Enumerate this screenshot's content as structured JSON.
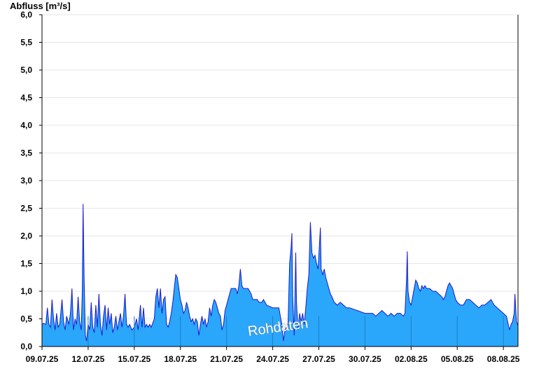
{
  "chart_data": {
    "type": "area",
    "ylabel": "Abfluss [m³/s]",
    "ylim": [
      0,
      6.0
    ],
    "y_ticks": [
      "0,0",
      "0,5",
      "1,0",
      "1,5",
      "2,0",
      "2,5",
      "3,0",
      "3,5",
      "4,0",
      "4,5",
      "5,0",
      "5,5",
      "6,0"
    ],
    "x_ticks": [
      "09.07.25",
      "12.07.25",
      "15.07.25",
      "18.07.25",
      "21.07.25",
      "24.07.25",
      "27.07.25",
      "30.07.25",
      "02.08.25",
      "05.08.25",
      "08.08.25"
    ],
    "x_range_days": [
      0,
      30.95
    ],
    "watermark": "Rohdaten",
    "grid": true,
    "colors": {
      "fill": "#2aa6fa",
      "line": "#1a1acc",
      "grid": "#e6e6e6",
      "axis": "#000000"
    },
    "series": [
      {
        "points": [
          [
            0,
            0.4
          ],
          [
            0.1,
            0.42
          ],
          [
            0.25,
            0.4
          ],
          [
            0.35,
            0.7
          ],
          [
            0.45,
            0.4
          ],
          [
            0.55,
            0.35
          ],
          [
            0.65,
            0.85
          ],
          [
            0.75,
            0.5
          ],
          [
            0.85,
            0.3
          ],
          [
            0.95,
            0.6
          ],
          [
            1.05,
            0.35
          ],
          [
            1.15,
            0.4
          ],
          [
            1.3,
            0.85
          ],
          [
            1.4,
            0.45
          ],
          [
            1.5,
            0.3
          ],
          [
            1.6,
            0.55
          ],
          [
            1.75,
            0.4
          ],
          [
            1.85,
            0.6
          ],
          [
            1.95,
            1.05
          ],
          [
            2.05,
            0.3
          ],
          [
            2.15,
            0.5
          ],
          [
            2.25,
            0.4
          ],
          [
            2.35,
            0.9
          ],
          [
            2.45,
            0.45
          ],
          [
            2.55,
            0.3
          ],
          [
            2.62,
            1.0
          ],
          [
            2.67,
            2.58
          ],
          [
            2.74,
            1.2
          ],
          [
            2.82,
            0.2
          ],
          [
            2.9,
            0.1
          ],
          [
            3.0,
            0.4
          ],
          [
            3.1,
            0.3
          ],
          [
            3.2,
            0.8
          ],
          [
            3.3,
            0.35
          ],
          [
            3.4,
            0.25
          ],
          [
            3.5,
            0.75
          ],
          [
            3.6,
            0.35
          ],
          [
            3.7,
            0.95
          ],
          [
            3.8,
            0.4
          ],
          [
            3.9,
            0.2
          ],
          [
            4.0,
            0.55
          ],
          [
            4.1,
            0.75
          ],
          [
            4.2,
            0.3
          ],
          [
            4.3,
            0.7
          ],
          [
            4.4,
            0.4
          ],
          [
            4.5,
            0.6
          ],
          [
            4.6,
            0.25
          ],
          [
            4.7,
            0.35
          ],
          [
            4.8,
            0.55
          ],
          [
            4.9,
            0.3
          ],
          [
            5.0,
            0.45
          ],
          [
            5.1,
            0.6
          ],
          [
            5.2,
            0.35
          ],
          [
            5.3,
            0.55
          ],
          [
            5.4,
            0.95
          ],
          [
            5.5,
            0.4
          ],
          [
            5.6,
            0.35
          ],
          [
            5.7,
            0.4
          ],
          [
            5.85,
            0.3
          ],
          [
            6.0,
            0.35
          ],
          [
            6.15,
            0.5
          ],
          [
            6.25,
            0.3
          ],
          [
            6.4,
            0.75
          ],
          [
            6.5,
            0.35
          ],
          [
            6.6,
            0.7
          ],
          [
            6.7,
            0.35
          ],
          [
            6.8,
            0.4
          ],
          [
            6.9,
            0.35
          ],
          [
            7.0,
            0.4
          ],
          [
            7.1,
            0.35
          ],
          [
            7.3,
            0.5
          ],
          [
            7.4,
            0.9
          ],
          [
            7.5,
            1.05
          ],
          [
            7.6,
            0.7
          ],
          [
            7.7,
            1.05
          ],
          [
            7.8,
            0.6
          ],
          [
            7.9,
            0.85
          ],
          [
            8.0,
            0.9
          ],
          [
            8.1,
            0.4
          ],
          [
            8.2,
            0.35
          ],
          [
            8.3,
            0.45
          ],
          [
            8.4,
            0.6
          ],
          [
            8.5,
            0.8
          ],
          [
            8.6,
            1.05
          ],
          [
            8.7,
            1.3
          ],
          [
            8.8,
            1.25
          ],
          [
            8.9,
            1.05
          ],
          [
            9.0,
            0.85
          ],
          [
            9.1,
            0.75
          ],
          [
            9.2,
            0.6
          ],
          [
            9.3,
            0.65
          ],
          [
            9.4,
            0.8
          ],
          [
            9.5,
            0.7
          ],
          [
            9.6,
            0.55
          ],
          [
            9.7,
            0.45
          ],
          [
            9.8,
            0.5
          ],
          [
            9.9,
            0.4
          ],
          [
            10.0,
            0.5
          ],
          [
            10.1,
            0.45
          ],
          [
            10.2,
            0.2
          ],
          [
            10.3,
            0.4
          ],
          [
            10.4,
            0.55
          ],
          [
            10.5,
            0.4
          ],
          [
            10.6,
            0.5
          ],
          [
            10.7,
            0.35
          ],
          [
            10.8,
            0.45
          ],
          [
            10.9,
            0.7
          ],
          [
            11.0,
            0.55
          ],
          [
            11.1,
            0.75
          ],
          [
            11.2,
            0.85
          ],
          [
            11.3,
            0.8
          ],
          [
            11.4,
            0.7
          ],
          [
            11.5,
            0.6
          ],
          [
            11.6,
            0.55
          ],
          [
            11.7,
            0.3
          ],
          [
            11.8,
            0.4
          ],
          [
            11.9,
            0.65
          ],
          [
            12.0,
            0.75
          ],
          [
            12.1,
            0.85
          ],
          [
            12.2,
            0.95
          ],
          [
            12.3,
            1.05
          ],
          [
            12.6,
            1.05
          ],
          [
            12.7,
            0.95
          ],
          [
            12.8,
            1.1
          ],
          [
            12.9,
            1.4
          ],
          [
            13.0,
            1.1
          ],
          [
            13.1,
            1.05
          ],
          [
            13.4,
            1.05
          ],
          [
            13.5,
            1.0
          ],
          [
            13.6,
            0.95
          ],
          [
            13.7,
            0.85
          ],
          [
            14.0,
            0.85
          ],
          [
            14.1,
            0.8
          ],
          [
            14.3,
            0.8
          ],
          [
            14.4,
            0.85
          ],
          [
            14.5,
            0.8
          ],
          [
            14.6,
            0.75
          ],
          [
            15.0,
            0.7
          ],
          [
            15.4,
            0.7
          ],
          [
            15.5,
            0.55
          ],
          [
            15.6,
            0.4
          ],
          [
            15.7,
            0.1
          ],
          [
            15.8,
            0.3
          ],
          [
            16.0,
            0.4
          ],
          [
            16.1,
            1.5
          ],
          [
            16.2,
            1.8
          ],
          [
            16.25,
            2.05
          ],
          [
            16.3,
            0.9
          ],
          [
            16.4,
            0.2
          ],
          [
            16.5,
            1.7
          ],
          [
            16.55,
            0.8
          ],
          [
            16.65,
            0.3
          ],
          [
            16.75,
            0.6
          ],
          [
            16.85,
            0.45
          ],
          [
            16.95,
            0.6
          ],
          [
            17.05,
            0.4
          ],
          [
            17.15,
            0.7
          ],
          [
            17.25,
            1.05
          ],
          [
            17.35,
            1.3
          ],
          [
            17.45,
            2.25
          ],
          [
            17.55,
            1.7
          ],
          [
            17.65,
            1.6
          ],
          [
            17.75,
            1.65
          ],
          [
            17.85,
            1.5
          ],
          [
            17.95,
            1.4
          ],
          [
            18.05,
            1.9
          ],
          [
            18.1,
            2.15
          ],
          [
            18.15,
            1.4
          ],
          [
            18.25,
            1.3
          ],
          [
            18.35,
            1.4
          ],
          [
            18.45,
            1.25
          ],
          [
            18.55,
            1.15
          ],
          [
            18.65,
            1.05
          ],
          [
            18.75,
            0.95
          ],
          [
            18.85,
            0.9
          ],
          [
            19.0,
            0.8
          ],
          [
            19.2,
            0.75
          ],
          [
            19.4,
            0.8
          ],
          [
            19.6,
            0.75
          ],
          [
            19.8,
            0.7
          ],
          [
            20.0,
            0.7
          ],
          [
            20.5,
            0.65
          ],
          [
            21.0,
            0.6
          ],
          [
            21.5,
            0.6
          ],
          [
            21.7,
            0.55
          ],
          [
            21.9,
            0.6
          ],
          [
            22.1,
            0.65
          ],
          [
            22.3,
            0.6
          ],
          [
            22.5,
            0.55
          ],
          [
            22.7,
            0.6
          ],
          [
            22.9,
            0.55
          ],
          [
            23.1,
            0.6
          ],
          [
            23.3,
            0.6
          ],
          [
            23.5,
            0.55
          ],
          [
            23.6,
            0.6
          ],
          [
            23.7,
            1.2
          ],
          [
            23.75,
            1.72
          ],
          [
            23.8,
            1.0
          ],
          [
            23.9,
            0.8
          ],
          [
            24.0,
            0.75
          ],
          [
            24.1,
            0.9
          ],
          [
            24.2,
            1.05
          ],
          [
            24.3,
            1.2
          ],
          [
            24.4,
            1.15
          ],
          [
            24.5,
            1.05
          ],
          [
            24.6,
            1.0
          ],
          [
            24.7,
            1.1
          ],
          [
            24.8,
            1.05
          ],
          [
            24.9,
            1.1
          ],
          [
            25.0,
            1.05
          ],
          [
            25.2,
            1.05
          ],
          [
            25.4,
            1.0
          ],
          [
            25.6,
            1.0
          ],
          [
            25.8,
            0.95
          ],
          [
            26.0,
            0.9
          ],
          [
            26.1,
            0.85
          ],
          [
            26.2,
            0.9
          ],
          [
            26.3,
            1.0
          ],
          [
            26.4,
            1.1
          ],
          [
            26.5,
            1.15
          ],
          [
            26.6,
            1.1
          ],
          [
            26.7,
            1.05
          ],
          [
            26.8,
            0.95
          ],
          [
            26.9,
            0.85
          ],
          [
            27.0,
            0.8
          ],
          [
            27.2,
            0.75
          ],
          [
            27.4,
            0.75
          ],
          [
            27.5,
            0.8
          ],
          [
            27.6,
            0.85
          ],
          [
            27.8,
            0.85
          ],
          [
            28.0,
            0.8
          ],
          [
            28.2,
            0.75
          ],
          [
            28.4,
            0.7
          ],
          [
            28.6,
            0.75
          ],
          [
            28.8,
            0.75
          ],
          [
            29.0,
            0.8
          ],
          [
            29.2,
            0.85
          ],
          [
            29.3,
            0.8
          ],
          [
            29.4,
            0.75
          ],
          [
            29.6,
            0.7
          ],
          [
            29.8,
            0.65
          ],
          [
            30.0,
            0.6
          ],
          [
            30.2,
            0.55
          ],
          [
            30.4,
            0.3
          ],
          [
            30.5,
            0.4
          ],
          [
            30.6,
            0.45
          ],
          [
            30.7,
            0.6
          ],
          [
            30.75,
            0.95
          ],
          [
            30.8,
            0.7
          ],
          [
            30.85,
            0.45
          ],
          [
            30.95,
            0.38
          ]
        ]
      }
    ]
  }
}
